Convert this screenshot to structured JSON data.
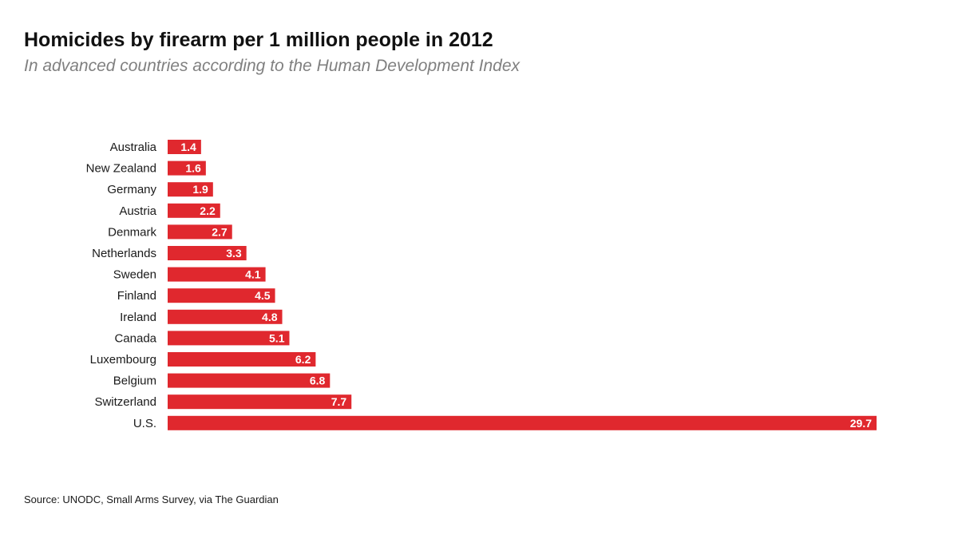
{
  "chart_data": {
    "type": "bar",
    "orientation": "horizontal",
    "title": "Homicides by firearm per 1 million people in 2012",
    "subtitle": "In advanced countries according to the Human Development Index",
    "categories": [
      "Australia",
      "New Zealand",
      "Germany",
      "Austria",
      "Denmark",
      "Netherlands",
      "Sweden",
      "Finland",
      "Ireland",
      "Canada",
      "Luxembourg",
      "Belgium",
      "Switzerland",
      "U.S."
    ],
    "values": [
      1.4,
      1.6,
      1.9,
      2.2,
      2.7,
      3.3,
      4.1,
      4.5,
      4.8,
      5.1,
      6.2,
      6.8,
      7.7,
      29.7
    ],
    "value_labels": [
      "1.4",
      "1.6",
      "1.9",
      "2.2",
      "2.7",
      "3.3",
      "4.1",
      "4.5",
      "4.8",
      "5.1",
      "6.2",
      "6.8",
      "7.7",
      "29.7"
    ],
    "xlim": [
      0,
      29.7
    ],
    "grid": false,
    "legend": "none",
    "bar_color": "#e0282e",
    "data_label_color": "#ffffff",
    "source": "Source: UNODC, Small Arms Survey, via The Guardian"
  }
}
